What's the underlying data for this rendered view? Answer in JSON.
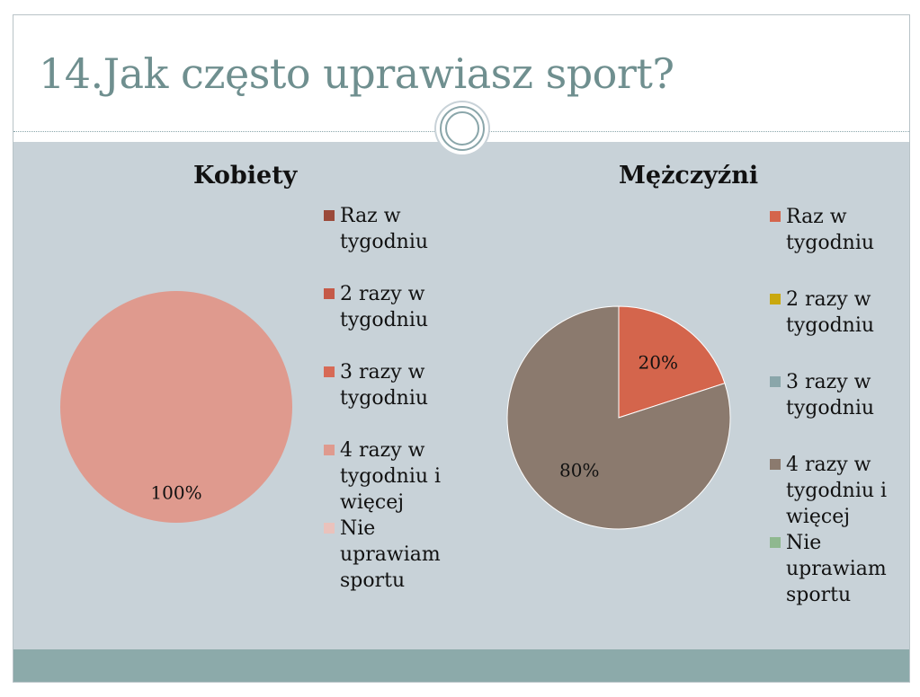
{
  "slide": {
    "title": "14.Jak często uprawiasz sport?"
  },
  "legend_labels": [
    "Raz w\ntygodniu",
    "2 razy w\ntygodniu",
    "3 razy w\ntygodniu",
    "4 razy w\ntygodniu i\nwięcej",
    "Nie\nuprawiam\nsportu"
  ],
  "chart_data": [
    {
      "type": "pie",
      "title": "Kobiety",
      "categories": [
        "Raz w tygodniu",
        "2 razy w tygodniu",
        "3 razy w tygodniu",
        "4 razy w tygodniu i więcej",
        "Nie uprawiam sportu"
      ],
      "values": [
        0,
        0,
        0,
        100,
        0
      ],
      "colors": [
        "#9b4a3a",
        "#c55a48",
        "#d76a56",
        "#df9a8e",
        "#eac2bc"
      ],
      "data_labels": [
        "",
        "",
        "",
        "100%",
        ""
      ],
      "legend_position": "right"
    },
    {
      "type": "pie",
      "title": "Mężczyźni",
      "categories": [
        "Raz w tygodniu",
        "2 razy w tygodniu",
        "3 razy w tygodniu",
        "4 razy w tygodniu i więcej",
        "Nie uprawiam sportu"
      ],
      "values": [
        20,
        0,
        0,
        80,
        0
      ],
      "colors": [
        "#d4654c",
        "#c9a80e",
        "#8aa6aa",
        "#8b7a6e",
        "#8fb88f"
      ],
      "data_labels": [
        "20%",
        "",
        "",
        "80%",
        ""
      ],
      "legend_position": "right"
    }
  ]
}
